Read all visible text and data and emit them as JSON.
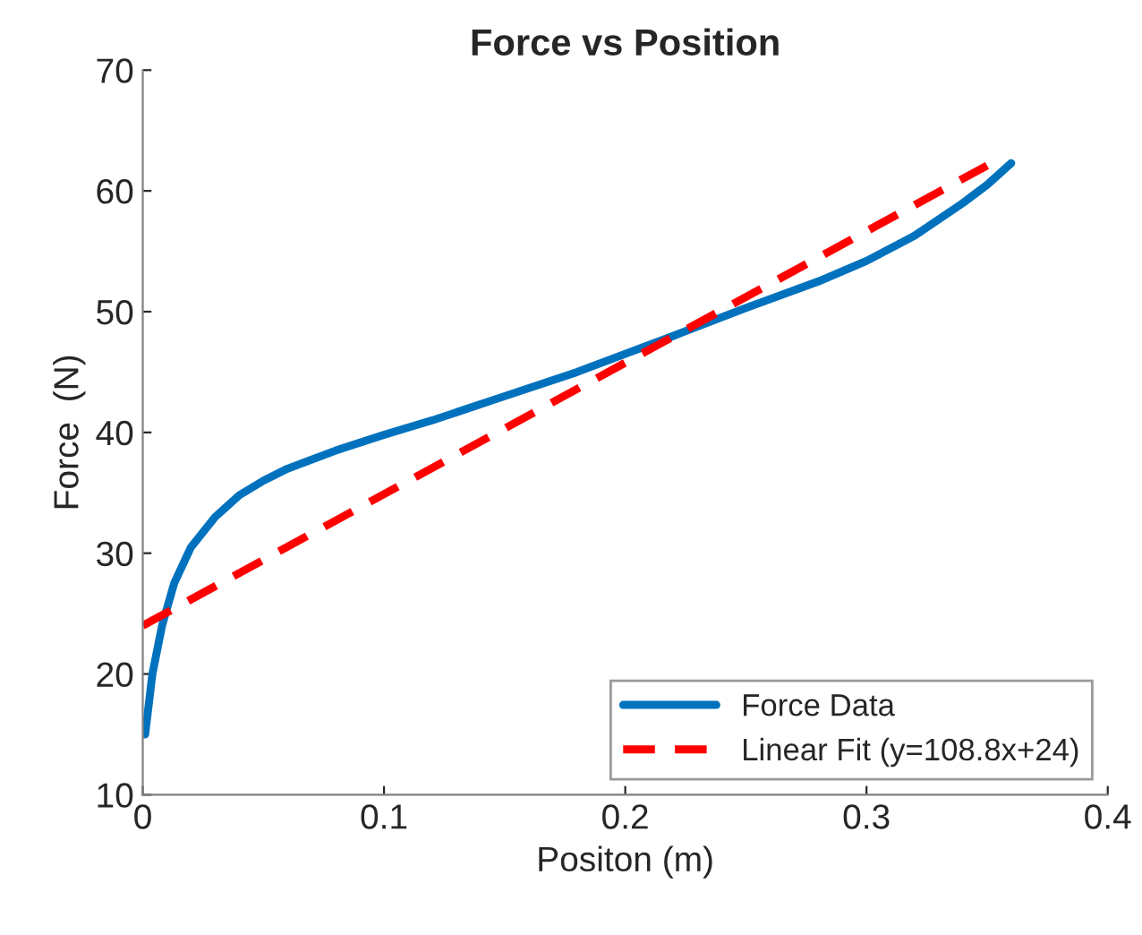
{
  "chart_data": {
    "type": "line",
    "title": "Force vs Position",
    "xlabel": "Positon (m)",
    "ylabel": "Force  (N)",
    "series": [
      {
        "name": "Force Data",
        "color": "#0072bd",
        "line_style": "solid",
        "x": [
          0.001,
          0.004,
          0.008,
          0.013,
          0.02,
          0.03,
          0.04,
          0.05,
          0.06,
          0.08,
          0.1,
          0.12,
          0.15,
          0.18,
          0.2,
          0.22,
          0.25,
          0.28,
          0.3,
          0.32,
          0.34,
          0.35,
          0.36
        ],
        "values": [
          15,
          20,
          24,
          27.5,
          30.5,
          33,
          34.8,
          36,
          37,
          38.5,
          39.8,
          41,
          43,
          45,
          46.5,
          48,
          50.3,
          52.5,
          54.2,
          56.3,
          59,
          60.5,
          62.3
        ]
      },
      {
        "name": "Linear Fit (y=108.8x+24)",
        "color": "#ff0000",
        "line_style": "dashed",
        "x": [
          0,
          0.35
        ],
        "values": [
          24,
          62.1
        ]
      }
    ],
    "xlim": [
      0,
      0.4
    ],
    "xticks": [
      0,
      0.1,
      0.2,
      0.3,
      0.4
    ],
    "ylim": [
      10,
      70
    ],
    "yticks": [
      10,
      20,
      30,
      40,
      50,
      60,
      70
    ],
    "grid": false,
    "legend": "bottom right"
  }
}
